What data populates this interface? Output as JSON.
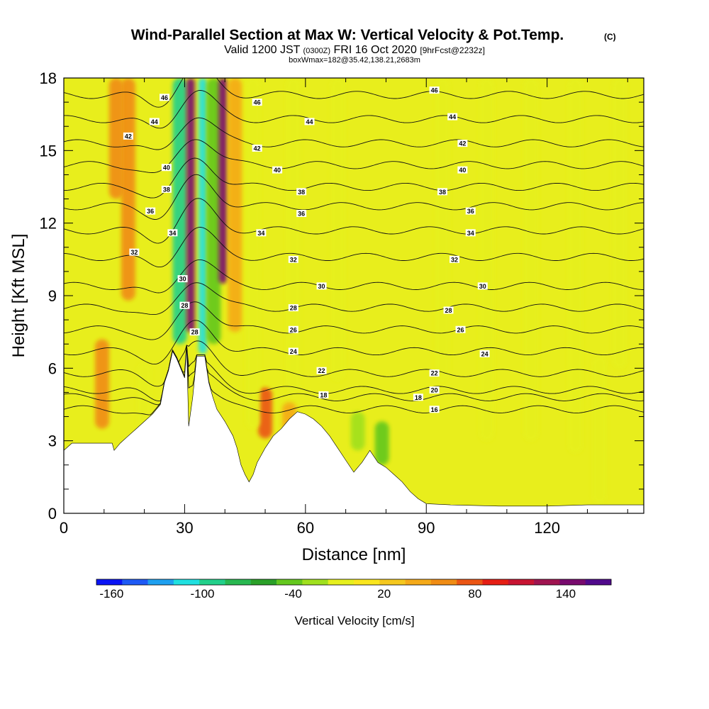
{
  "chart_data": {
    "type": "heatmap",
    "title": "Wind-Parallel Section at Max W: Vertical Velocity & Pot.Temp.",
    "title_mark": "(C)",
    "subtitle_parts": [
      "Valid 1200 JST",
      "(0300Z)",
      "FRI 16 Oct 2020",
      "[9hrFcst@2232z]"
    ],
    "subtitle2": "boxWmax=182@35.42,138.21,2683m",
    "xlabel": "Distance [nm]",
    "ylabel": "Height [Kft MSL]",
    "xlim": [
      0,
      144
    ],
    "ylim": [
      0,
      18
    ],
    "x_ticks": [
      "0",
      "30",
      "60",
      "90",
      "120"
    ],
    "x_tick_values": [
      0,
      30,
      60,
      90,
      120
    ],
    "y_ticks": [
      "0",
      "3",
      "6",
      "9",
      "12",
      "15",
      "18"
    ],
    "y_tick_values": [
      0,
      3,
      6,
      9,
      12,
      15,
      18
    ],
    "colorbar": {
      "label": "Vertical Velocity [cm/s]",
      "range": [
        -170,
        170
      ],
      "tick_labels": [
        "-160",
        "-100",
        "-40",
        "20",
        "80",
        "140"
      ],
      "tick_values": [
        -160,
        -100,
        -40,
        20,
        80,
        140
      ],
      "colors": [
        "#0a14f5",
        "#1e5af5",
        "#1ea0f0",
        "#20e0e0",
        "#22d08a",
        "#28b850",
        "#2aa028",
        "#64c81e",
        "#a0e01e",
        "#e6f01e",
        "#fae61e",
        "#f5c81e",
        "#f5aa19",
        "#f08c14",
        "#eb5514",
        "#e61e14",
        "#c81432",
        "#a01450",
        "#780a6e",
        "#500a8c"
      ]
    },
    "terrain_profile": [
      [
        0,
        2.6
      ],
      [
        2,
        2.9
      ],
      [
        6,
        2.9
      ],
      [
        12,
        2.9
      ],
      [
        12.5,
        2.6
      ],
      [
        14,
        2.9
      ],
      [
        16,
        3.2
      ],
      [
        18,
        3.5
      ],
      [
        20,
        3.8
      ],
      [
        22,
        4.1
      ],
      [
        24,
        4.5
      ],
      [
        25,
        5.4
      ],
      [
        26,
        5.9
      ],
      [
        27,
        6.7
      ],
      [
        28,
        6.4
      ],
      [
        30,
        5.6
      ],
      [
        30.5,
        6.9
      ],
      [
        31,
        3.6
      ],
      [
        32,
        4.8
      ],
      [
        33,
        6.5
      ],
      [
        35,
        6.5
      ],
      [
        36,
        5.4
      ],
      [
        37,
        4.8
      ],
      [
        38,
        4.3
      ],
      [
        40,
        3.8
      ],
      [
        42,
        3.2
      ],
      [
        43,
        2.7
      ],
      [
        44,
        2.0
      ],
      [
        45,
        1.6
      ],
      [
        46,
        1.3
      ],
      [
        47,
        1.6
      ],
      [
        48,
        2.1
      ],
      [
        50,
        2.7
      ],
      [
        52,
        3.2
      ],
      [
        54,
        3.5
      ],
      [
        56,
        3.9
      ],
      [
        58,
        4.2
      ],
      [
        60,
        4.1
      ],
      [
        62,
        3.9
      ],
      [
        64,
        3.6
      ],
      [
        66,
        3.2
      ],
      [
        68,
        2.7
      ],
      [
        70,
        2.2
      ],
      [
        72,
        1.7
      ],
      [
        74,
        2.1
      ],
      [
        76,
        2.6
      ],
      [
        78,
        2.1
      ],
      [
        80,
        1.9
      ],
      [
        82,
        1.6
      ],
      [
        84,
        1.3
      ],
      [
        86,
        0.9
      ],
      [
        88,
        0.6
      ],
      [
        90,
        0.4
      ],
      [
        96,
        0.35
      ],
      [
        108,
        0.3
      ],
      [
        120,
        0.3
      ],
      [
        130,
        0.35
      ],
      [
        138,
        0.35
      ],
      [
        144,
        0.35
      ]
    ],
    "w_columns": [
      {
        "x": 9.5,
        "y0": 3.5,
        "y1": 7.2,
        "w": 60
      },
      {
        "x": 16,
        "y0": 8.8,
        "y1": 18,
        "w": 58
      },
      {
        "x": 13,
        "y0": 13,
        "y1": 18,
        "w": 52
      },
      {
        "x": 28.8,
        "y0": 7.0,
        "y1": 18,
        "w": -95
      },
      {
        "x": 31.5,
        "y0": 7.5,
        "y1": 18,
        "w": 140
      },
      {
        "x": 34.5,
        "y0": 6.6,
        "y1": 18,
        "w": -105
      },
      {
        "x": 37.2,
        "y0": 7.0,
        "y1": 18,
        "w": -40
      },
      {
        "x": 39.5,
        "y0": 9.5,
        "y1": 18,
        "w": 145
      },
      {
        "x": 42.5,
        "y0": 7.5,
        "y1": 18,
        "w": 50
      },
      {
        "x": 50,
        "y0": 3.1,
        "y1": 5.2,
        "w": 70
      },
      {
        "x": 56,
        "y0": 3.3,
        "y1": 4.6,
        "w": 40
      },
      {
        "x": 47,
        "y0": 3.5,
        "y1": 18,
        "w": -12
      },
      {
        "x": 57,
        "y0": 5.0,
        "y1": 18,
        "w": -10
      },
      {
        "x": 68,
        "y0": 5.5,
        "y1": 18,
        "w": -10
      },
      {
        "x": 73,
        "y0": 2.6,
        "y1": 4.2,
        "w": -25
      },
      {
        "x": 79,
        "y0": 2.0,
        "y1": 3.8,
        "w": -40
      },
      {
        "x": 94,
        "y0": 5.5,
        "y1": 18,
        "w": -10
      },
      {
        "x": 105,
        "y0": 3.0,
        "y1": 18,
        "w": -10
      },
      {
        "x": 116,
        "y0": 3.0,
        "y1": 18,
        "w": -12
      },
      {
        "x": 127,
        "y0": 2.5,
        "y1": 18,
        "w": -10
      },
      {
        "x": 133,
        "y0": 0.4,
        "y1": 6.5,
        "w": -15
      },
      {
        "x": 138,
        "y0": 6.0,
        "y1": 18,
        "w": -10
      },
      {
        "x": 20,
        "y0": 3.4,
        "y1": 6.2,
        "w": -10
      }
    ],
    "isentropes": [
      {
        "theta": 16,
        "base_y": 4.3
      },
      {
        "theta": 18,
        "base_y": 4.8
      },
      {
        "theta": 20,
        "base_y": 5.1
      },
      {
        "theta": 22,
        "base_y": 5.8
      },
      {
        "theta": 24,
        "base_y": 6.7
      },
      {
        "theta": 26,
        "base_y": 7.6
      },
      {
        "theta": 28,
        "base_y": 8.5
      },
      {
        "theta": 30,
        "base_y": 9.4
      },
      {
        "theta": 32,
        "base_y": 10.6
      },
      {
        "theta": 34,
        "base_y": 11.7
      },
      {
        "theta": 36,
        "base_y": 12.7
      },
      {
        "theta": 38,
        "base_y": 13.5
      },
      {
        "theta": 40,
        "base_y": 14.4
      },
      {
        "theta": 42,
        "base_y": 15.3
      },
      {
        "theta": 44,
        "base_y": 16.3
      },
      {
        "theta": 46,
        "base_y": 17.3
      }
    ],
    "contour_labels": [
      {
        "text": "46",
        "x": 25,
        "y": 17.2
      },
      {
        "text": "46",
        "x": 48,
        "y": 17.0
      },
      {
        "text": "46",
        "x": 92,
        "y": 17.5
      },
      {
        "text": "44",
        "x": 22.5,
        "y": 16.2
      },
      {
        "text": "44",
        "x": 61,
        "y": 16.2
      },
      {
        "text": "44",
        "x": 96.5,
        "y": 16.4
      },
      {
        "text": "42",
        "x": 16,
        "y": 15.6
      },
      {
        "text": "42",
        "x": 48,
        "y": 15.1
      },
      {
        "text": "42",
        "x": 99,
        "y": 15.3
      },
      {
        "text": "40",
        "x": 25.5,
        "y": 14.3
      },
      {
        "text": "40",
        "x": 53,
        "y": 14.2
      },
      {
        "text": "40",
        "x": 99,
        "y": 14.2
      },
      {
        "text": "38",
        "x": 25.5,
        "y": 13.4
      },
      {
        "text": "38",
        "x": 59,
        "y": 13.3
      },
      {
        "text": "38",
        "x": 94,
        "y": 13.3
      },
      {
        "text": "36",
        "x": 21.5,
        "y": 12.5
      },
      {
        "text": "36",
        "x": 59,
        "y": 12.4
      },
      {
        "text": "36",
        "x": 101,
        "y": 12.5
      },
      {
        "text": "34",
        "x": 27,
        "y": 11.6
      },
      {
        "text": "34",
        "x": 49,
        "y": 11.6
      },
      {
        "text": "34",
        "x": 101,
        "y": 11.6
      },
      {
        "text": "32",
        "x": 17.5,
        "y": 10.8
      },
      {
        "text": "32",
        "x": 57,
        "y": 10.5
      },
      {
        "text": "32",
        "x": 97,
        "y": 10.5
      },
      {
        "text": "30",
        "x": 29.5,
        "y": 9.7
      },
      {
        "text": "30",
        "x": 64,
        "y": 9.4
      },
      {
        "text": "30",
        "x": 104,
        "y": 9.4
      },
      {
        "text": "28",
        "x": 30,
        "y": 8.6
      },
      {
        "text": "28",
        "x": 57,
        "y": 8.5
      },
      {
        "text": "28",
        "x": 95.5,
        "y": 8.4
      },
      {
        "text": "28",
        "x": 32.5,
        "y": 7.5
      },
      {
        "text": "26",
        "x": 57,
        "y": 7.6
      },
      {
        "text": "26",
        "x": 98.5,
        "y": 7.6
      },
      {
        "text": "24",
        "x": 57,
        "y": 6.7
      },
      {
        "text": "24",
        "x": 104.5,
        "y": 6.6
      },
      {
        "text": "22",
        "x": 64,
        "y": 5.9
      },
      {
        "text": "22",
        "x": 92,
        "y": 5.8
      },
      {
        "text": "20",
        "x": 92,
        "y": 5.1
      },
      {
        "text": "18",
        "x": 64.5,
        "y": 4.9
      },
      {
        "text": "18",
        "x": 88,
        "y": 4.8
      },
      {
        "text": "16",
        "x": 92,
        "y": 4.3
      }
    ]
  }
}
